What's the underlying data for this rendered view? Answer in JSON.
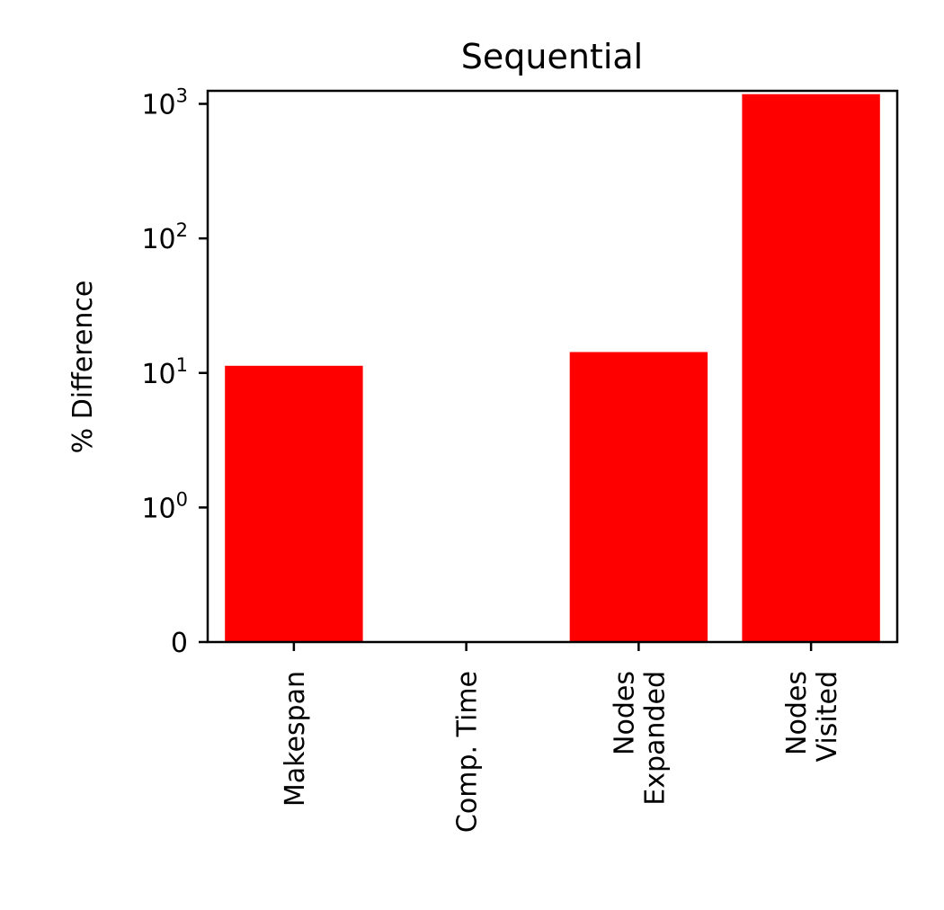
{
  "chart_data": {
    "type": "bar",
    "title": "Sequential",
    "xlabel": "",
    "ylabel": "% Difference",
    "yscale": "symlog",
    "ylim": [
      0,
      1250
    ],
    "y_ticks": [
      {
        "value": 0,
        "base": "0",
        "exp": ""
      },
      {
        "value": 1,
        "base": "10",
        "exp": "0"
      },
      {
        "value": 10,
        "base": "10",
        "exp": "1"
      },
      {
        "value": 100,
        "base": "10",
        "exp": "2"
      },
      {
        "value": 1000,
        "base": "10",
        "exp": "3"
      }
    ],
    "categories": [
      [
        "Makespan"
      ],
      [
        "Comp. Time"
      ],
      [
        "Nodes",
        "Expanded"
      ],
      [
        "Nodes",
        "Visited"
      ]
    ],
    "values": [
      11.3,
      0,
      14.3,
      1180
    ],
    "bar_color": "#ff0000",
    "grid": false,
    "legend": "none"
  }
}
